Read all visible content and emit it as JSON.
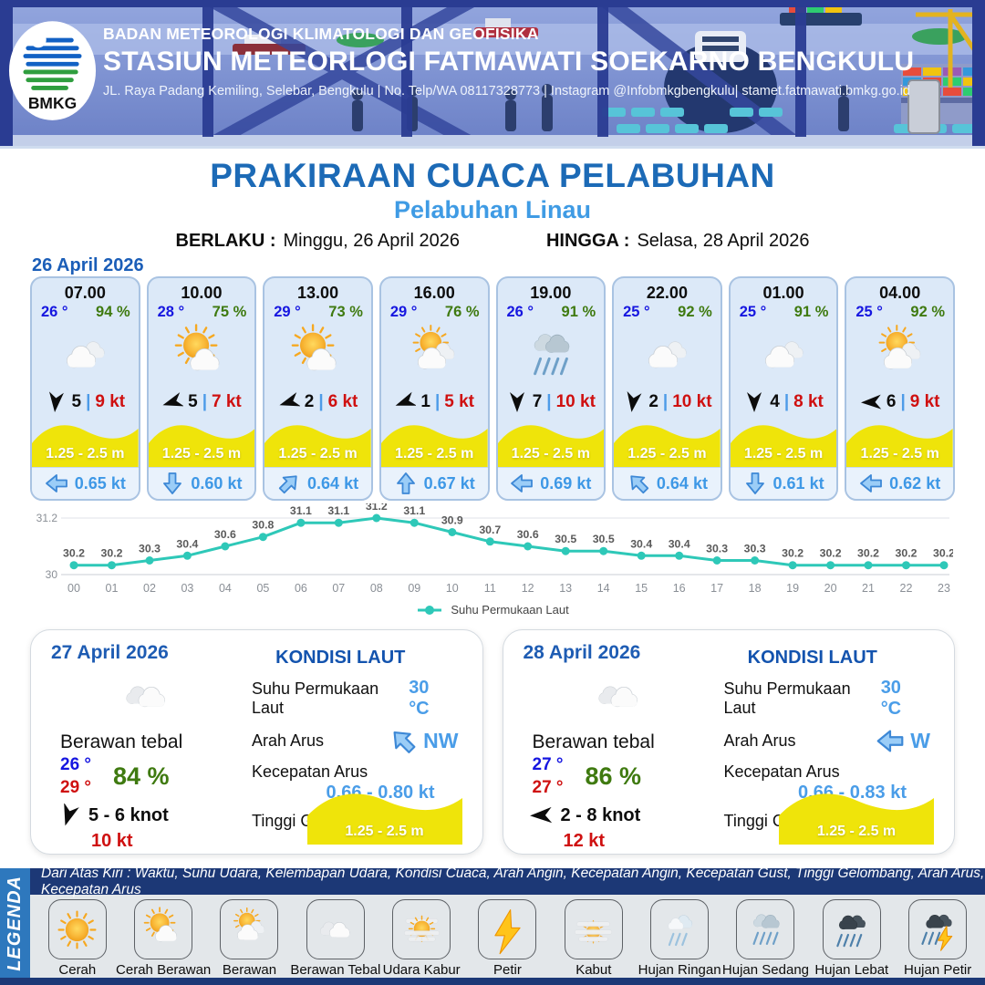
{
  "header": {
    "logo_text": "BMKG",
    "org": "BADAN METEOROLOGI KLIMATOLOGI DAN GEOFISIKA",
    "station": "STASIUN METEORLOGI FATMAWATI SOEKARNO BENGKULU",
    "address": "JL.  Raya Padang Kemiling, Selebar, Bengkulu | No. Telp/WA 08117328773 | Instagram @Infobmkgbengkulu| stamet.fatmawati.bmkg.go.id"
  },
  "title": {
    "main": "PRAKIRAAN CUACA PELABUHAN",
    "sub": "Pelabuhan Linau"
  },
  "validity": {
    "berlaku_label": "BERLAKU :",
    "berlaku": "Minggu, 26 April 2026",
    "hingga_label": "HINGGA :",
    "hingga": "Selasa, 28 April 2026"
  },
  "forecast_date": "26 April 2026",
  "hourly": [
    {
      "time": "07.00",
      "temp": "26 °",
      "humidity": "94 %",
      "icon": "berawan",
      "wind_deg": 185,
      "wind_speed": "5",
      "gust": "9 kt",
      "wave_height": "1.25 - 2.5 m",
      "current_dir": "W",
      "current_speed": "0.65 kt"
    },
    {
      "time": "10.00",
      "temp": "28 °",
      "humidity": "75 %",
      "icon": "cerah-berawan",
      "wind_deg": 253,
      "wind_speed": "5",
      "gust": "7 kt",
      "wave_height": "1.25 - 2.5 m",
      "current_dir": "S",
      "current_speed": "0.60 kt"
    },
    {
      "time": "13.00",
      "temp": "29 °",
      "humidity": "73 %",
      "icon": "cerah-berawan",
      "wind_deg": 253,
      "wind_speed": "2",
      "gust": "6 kt",
      "wave_height": "1.25 - 2.5 m",
      "current_dir": "NE",
      "current_speed": "0.64 kt"
    },
    {
      "time": "16.00",
      "temp": "29 °",
      "humidity": "76 %",
      "icon": "berawan-sun",
      "wind_deg": 250,
      "wind_speed": "1",
      "gust": "5 kt",
      "wave_height": "1.25 - 2.5 m",
      "current_dir": "N",
      "current_speed": "0.67 kt"
    },
    {
      "time": "19.00",
      "temp": "26 °",
      "humidity": "91 %",
      "icon": "hujan-sedang",
      "wind_deg": 180,
      "wind_speed": "7",
      "gust": "10 kt",
      "wave_height": "1.25 - 2.5 m",
      "current_dir": "W",
      "current_speed": "0.69 kt"
    },
    {
      "time": "22.00",
      "temp": "25 °",
      "humidity": "92 %",
      "icon": "berawan",
      "wind_deg": 188,
      "wind_speed": "2",
      "gust": "10 kt",
      "wave_height": "1.25 - 2.5 m",
      "current_dir": "NW",
      "current_speed": "0.64 kt"
    },
    {
      "time": "01.00",
      "temp": "25 °",
      "humidity": "91 %",
      "icon": "berawan",
      "wind_deg": 180,
      "wind_speed": "4",
      "gust": "8 kt",
      "wave_height": "1.25 - 2.5 m",
      "current_dir": "S",
      "current_speed": "0.61 kt"
    },
    {
      "time": "04.00",
      "temp": "25 °",
      "humidity": "92 %",
      "icon": "berawan-sun",
      "wind_deg": 268,
      "wind_speed": "6",
      "gust": "9 kt",
      "wave_height": "1.25 - 2.5 m",
      "current_dir": "W",
      "current_speed": "0.62 kt"
    }
  ],
  "chart_data": {
    "type": "line",
    "series_name": "Suhu Permukaan Laut",
    "x": [
      "00",
      "01",
      "02",
      "03",
      "04",
      "05",
      "06",
      "07",
      "08",
      "09",
      "10",
      "11",
      "12",
      "13",
      "14",
      "15",
      "16",
      "17",
      "18",
      "19",
      "20",
      "21",
      "22",
      "23"
    ],
    "values": [
      30.2,
      30.2,
      30.3,
      30.4,
      30.6,
      30.8,
      31.1,
      31.1,
      31.2,
      31.1,
      30.9,
      30.7,
      30.6,
      30.5,
      30.5,
      30.4,
      30.4,
      30.3,
      30.3,
      30.2,
      30.2,
      30.2,
      30.2,
      30.2
    ],
    "ylim": [
      30,
      31.2
    ],
    "yticks": [
      31.2,
      30
    ],
    "xlabel": "",
    "ylabel": "",
    "grid": true,
    "legend_position": "bottom",
    "line_color": "#2ec8b8"
  },
  "sea_labels": {
    "kondisi": "KONDISI LAUT",
    "sst": "Suhu Permukaan Laut",
    "arah": "Arah Arus",
    "kecepatan": "Kecepatan Arus",
    "tinggi": "Tinggi Gelombang"
  },
  "daily": [
    {
      "date": "27 April 2026",
      "icon": "berawan-tebal",
      "condition": "Berawan tebal",
      "temp_min": "26 °",
      "temp_max": "29 °",
      "humidity": "84 %",
      "wind_deg": 197,
      "wind_range": "5 - 6 knot",
      "gust": "10 kt",
      "sea": {
        "sst": "30 °C",
        "current_dir": "NW",
        "current_speed": "0.66 - 0.80 kt",
        "wave": "1.25 - 2.5 m"
      }
    },
    {
      "date": "28 April 2026",
      "icon": "berawan-tebal",
      "condition": "Berawan tebal",
      "temp_min": "27 °",
      "temp_max": "27 °",
      "humidity": "86 %",
      "wind_deg": 268,
      "wind_range": "2 - 8 knot",
      "gust": "12 kt",
      "sea": {
        "sst": "30 °C",
        "current_dir": "W",
        "current_speed": "0.66 - 0.83 kt",
        "wave": "1.25 - 2.5 m"
      }
    }
  ],
  "legend": {
    "side_label": "LEGENDA",
    "description": "Dari Atas Kiri : Waktu, Suhu Udara, Kelembapan Udara, Kondisi Cuaca, Arah Angin, Kecepatan Angin, Kecepatan Gust, Tinggi Gelombang, Arah Arus, Kecepatan Arus",
    "items": [
      {
        "label": "Cerah",
        "icon": "cerah"
      },
      {
        "label": "Cerah Berawan",
        "icon": "cerah-berawan"
      },
      {
        "label": "Berawan",
        "icon": "berawan-sun"
      },
      {
        "label": "Berawan Tebal",
        "icon": "berawan-tebal"
      },
      {
        "label": "Udara Kabur",
        "icon": "udara-kabur"
      },
      {
        "label": "Petir",
        "icon": "petir"
      },
      {
        "label": "Kabut",
        "icon": "kabut"
      },
      {
        "label": "Hujan Ringan",
        "icon": "hujan-ringan"
      },
      {
        "label": "Hujan Sedang",
        "icon": "hujan-sedang"
      },
      {
        "label": "Hujan Lebat",
        "icon": "hujan-lebat"
      },
      {
        "label": "Hujan Petir",
        "icon": "hujan-petir"
      }
    ]
  },
  "colors": {
    "title_blue": "#1c6ab6",
    "subtitle_blue": "#3f9be4",
    "date_blue": "#1b5eb8",
    "temp_blue": "#1616e0",
    "humidity_green": "#3f7a10",
    "gust_red": "#cf1010",
    "wave_yellow": "#efe40a",
    "current_blue": "#3e98e6",
    "chart_teal": "#2ec8b8",
    "legend_navy": "#1c3876",
    "legend_band_blue": "#2e78bd",
    "card_bg": "#dce9f8"
  }
}
